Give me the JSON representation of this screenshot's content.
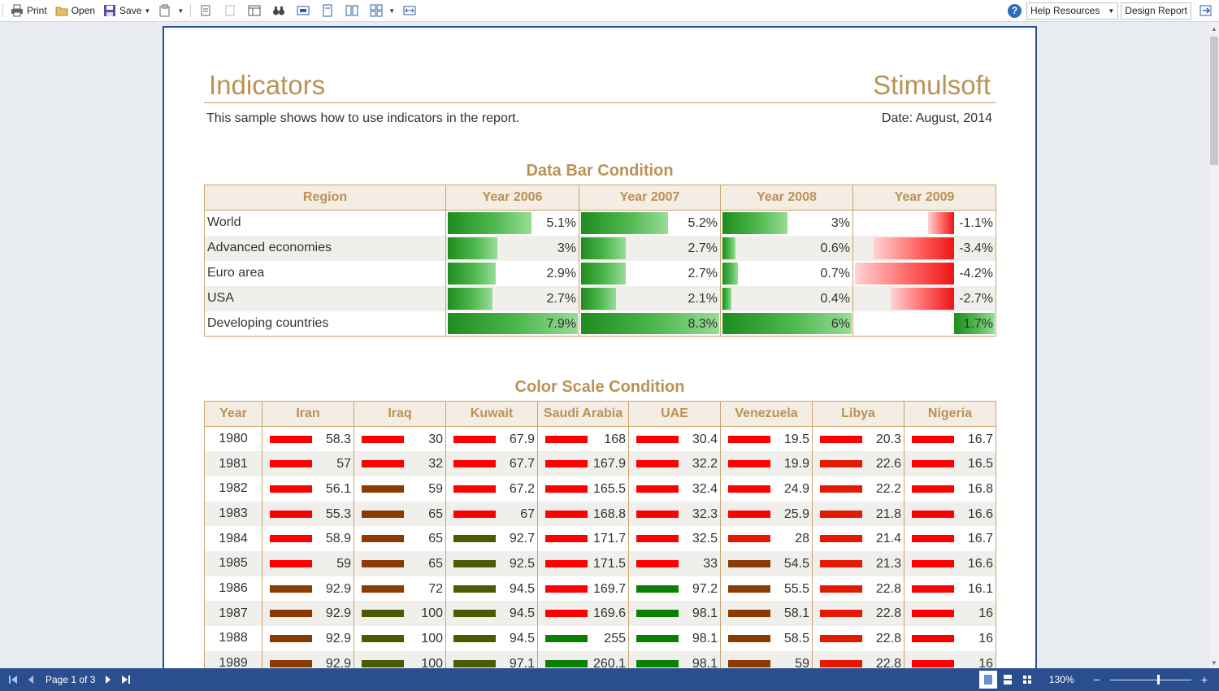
{
  "toolbar": {
    "print": "Print",
    "open": "Open",
    "save": "Save",
    "help": "Help Resources",
    "design": "Design Report"
  },
  "report": {
    "title": "Indicators",
    "brand": "Stimulsoft",
    "subtitle": "This sample shows how to use indicators in the report.",
    "date": "Date: August, 2014"
  },
  "databar": {
    "title": "Data Bar Condition",
    "headers": [
      "Region",
      "Year 2006",
      "Year 2007",
      "Year 2008",
      "Year 2009"
    ],
    "rows": [
      {
        "region": "World",
        "values": [
          5.1,
          5.2,
          3,
          -1.1
        ],
        "labels": [
          "5.1%",
          "5.2%",
          "3%",
          "-1.1%"
        ]
      },
      {
        "region": "Advanced economies",
        "values": [
          3,
          2.7,
          0.6,
          -3.4
        ],
        "labels": [
          "3%",
          "2.7%",
          "0.6%",
          "-3.4%"
        ]
      },
      {
        "region": "Euro area",
        "values": [
          2.9,
          2.7,
          0.7,
          -4.2
        ],
        "labels": [
          "2.9%",
          "2.7%",
          "0.7%",
          "-4.2%"
        ]
      },
      {
        "region": "USA",
        "values": [
          2.7,
          2.1,
          0.4,
          -2.7
        ],
        "labels": [
          "2.7%",
          "2.1%",
          "0.4%",
          "-2.7%"
        ]
      },
      {
        "region": "Developing countries",
        "values": [
          7.9,
          8.3,
          6,
          1.7
        ],
        "labels": [
          "7.9%",
          "8.3%",
          "6%",
          "1.7%"
        ]
      }
    ]
  },
  "colorscale": {
    "title": "Color Scale Condition",
    "headers": [
      "Year",
      "Iran",
      "Iraq",
      "Kuwait",
      "Saudi Arabia",
      "UAE",
      "Venezuela",
      "Libya",
      "Nigeria"
    ],
    "colors": {
      "red": "#ff0000",
      "red2": "#e31a00",
      "brown": "#8b3a00",
      "olive": "#4a5b00",
      "green": "#0a8000"
    },
    "rows": [
      {
        "year": "1980",
        "values": [
          "58.3",
          "30",
          "67.9",
          "168",
          "30.4",
          "19.5",
          "20.3",
          "16.7"
        ],
        "colors": [
          "red",
          "red",
          "red",
          "red",
          "red",
          "red",
          "red",
          "red"
        ]
      },
      {
        "year": "1981",
        "values": [
          "57",
          "32",
          "67.7",
          "167.9",
          "32.2",
          "19.9",
          "22.6",
          "16.5"
        ],
        "colors": [
          "red",
          "red",
          "red",
          "red",
          "red",
          "red",
          "red2",
          "red"
        ]
      },
      {
        "year": "1982",
        "values": [
          "56.1",
          "59",
          "67.2",
          "165.5",
          "32.4",
          "24.9",
          "22.2",
          "16.8"
        ],
        "colors": [
          "red",
          "brown",
          "red",
          "red",
          "red",
          "red",
          "red2",
          "red"
        ]
      },
      {
        "year": "1983",
        "values": [
          "55.3",
          "65",
          "67",
          "168.8",
          "32.3",
          "25.9",
          "21.8",
          "16.6"
        ],
        "colors": [
          "red",
          "brown",
          "red",
          "red",
          "red",
          "red",
          "red2",
          "red"
        ]
      },
      {
        "year": "1984",
        "values": [
          "58.9",
          "65",
          "92.7",
          "171.7",
          "32.5",
          "28",
          "21.4",
          "16.7"
        ],
        "colors": [
          "red",
          "brown",
          "olive",
          "red",
          "red",
          "red2",
          "red2",
          "red"
        ]
      },
      {
        "year": "1985",
        "values": [
          "59",
          "65",
          "92.5",
          "171.5",
          "33",
          "54.5",
          "21.3",
          "16.6"
        ],
        "colors": [
          "red",
          "brown",
          "olive",
          "red",
          "red",
          "brown",
          "red2",
          "red"
        ]
      },
      {
        "year": "1986",
        "values": [
          "92.9",
          "72",
          "94.5",
          "169.7",
          "97.2",
          "55.5",
          "22.8",
          "16.1"
        ],
        "colors": [
          "brown",
          "brown",
          "olive",
          "red",
          "green",
          "brown",
          "red2",
          "red"
        ]
      },
      {
        "year": "1987",
        "values": [
          "92.9",
          "100",
          "94.5",
          "169.6",
          "98.1",
          "58.1",
          "22.8",
          "16"
        ],
        "colors": [
          "brown",
          "olive",
          "olive",
          "red",
          "green",
          "brown",
          "red2",
          "red"
        ]
      },
      {
        "year": "1988",
        "values": [
          "92.9",
          "100",
          "94.5",
          "255",
          "98.1",
          "58.5",
          "22.8",
          "16"
        ],
        "colors": [
          "brown",
          "olive",
          "olive",
          "green",
          "green",
          "brown",
          "red2",
          "red"
        ]
      },
      {
        "year": "1989",
        "values": [
          "92.9",
          "100",
          "97.1",
          "260.1",
          "98.1",
          "59",
          "22.8",
          "16"
        ],
        "colors": [
          "brown",
          "olive",
          "olive",
          "green",
          "green",
          "brown",
          "red2",
          "red"
        ]
      }
    ]
  },
  "status": {
    "page": "Page 1 of 3",
    "zoom": "130%",
    "zoom_level": 1.3
  }
}
